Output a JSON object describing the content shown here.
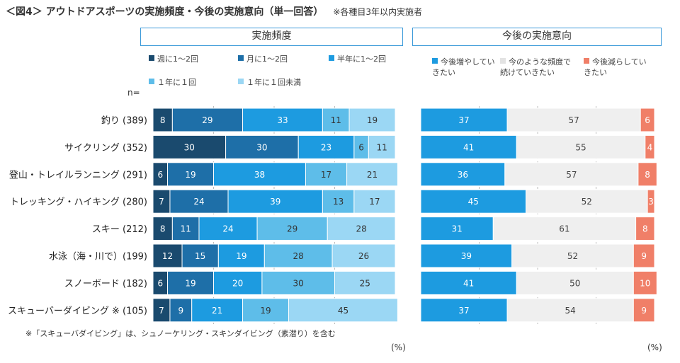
{
  "title": "＜図4＞ アウトドアスポーツの実施頻度・今後の実施意向（単一回答）",
  "title_note": "※各種目3年以内実施者",
  "n_label": "n=",
  "percent_unit": "(%)",
  "footnote": "※「スキューバダイビング」は、シュノーケリング・スキンダイビング（素潜り）を含む",
  "chart_data": [
    {
      "type": "bar",
      "orientation": "horizontal",
      "stacked": "percent",
      "title": "実施頻度",
      "categories": [
        "釣り (389)",
        "サイクリング (352)",
        "登山・トレイルランニング (291)",
        "トレッキング・ハイキング (280)",
        "スキー (212)",
        "水泳（海・川で）(199)",
        "スノーボード (182)",
        "スキューバーダイビング ※ (105)"
      ],
      "series": [
        {
          "name": "週に1～2回",
          "color": "#1a4a6e",
          "values": [
            8,
            30,
            6,
            7,
            8,
            12,
            6,
            7
          ]
        },
        {
          "name": "月に1～2回",
          "color": "#1e6fa8",
          "values": [
            29,
            30,
            19,
            24,
            11,
            15,
            19,
            9
          ]
        },
        {
          "name": "半年に1～2回",
          "color": "#1d9be0",
          "values": [
            33,
            23,
            38,
            39,
            24,
            19,
            20,
            21
          ]
        },
        {
          "name": "１年に１回",
          "color": "#5ebde9",
          "values": [
            11,
            6,
            17,
            13,
            29,
            28,
            30,
            19
          ]
        },
        {
          "name": "１年に１回未満",
          "color": "#9bd7f4",
          "values": [
            19,
            11,
            21,
            17,
            28,
            26,
            25,
            45
          ]
        }
      ],
      "xlim": [
        0,
        100
      ],
      "unit": "%"
    },
    {
      "type": "bar",
      "orientation": "horizontal",
      "stacked": "percent",
      "title": "今後の実施意向",
      "categories": [
        "釣り (389)",
        "サイクリング (352)",
        "登山・トレイルランニング (291)",
        "トレッキング・ハイキング (280)",
        "スキー (212)",
        "水泳（海・川で）(199)",
        "スノーボード (182)",
        "スキューバーダイビング ※ (105)"
      ],
      "series": [
        {
          "name": "今後増やしていきたい",
          "color": "#1d9be0",
          "values": [
            37,
            41,
            36,
            45,
            31,
            39,
            41,
            37
          ]
        },
        {
          "name": "今のような頻度で続けていきたい",
          "color": "#efefef",
          "values": [
            57,
            55,
            57,
            52,
            61,
            52,
            50,
            54
          ]
        },
        {
          "name": "今後減らしていきたい",
          "color": "#f07f68",
          "values": [
            6,
            4,
            8,
            3,
            8,
            9,
            10,
            9
          ]
        }
      ],
      "xlim": [
        0,
        100
      ],
      "unit": "%"
    }
  ]
}
